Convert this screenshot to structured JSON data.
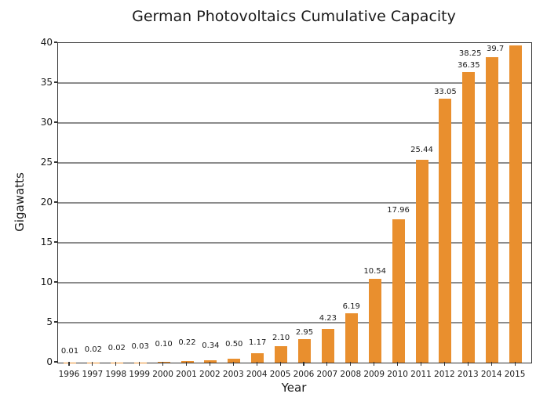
{
  "chart_data": {
    "type": "bar",
    "title": "German Photovoltaics Cumulative Capacity",
    "xlabel": "Year",
    "ylabel": "Gigawatts",
    "categories": [
      "1996",
      "1997",
      "1998",
      "1999",
      "2000",
      "2001",
      "2002",
      "2003",
      "2004",
      "2005",
      "2006",
      "2007",
      "2008",
      "2009",
      "2010",
      "2011",
      "2012",
      "2013",
      "2014",
      "2015"
    ],
    "values": [
      0.01,
      0.02,
      0.02,
      0.03,
      0.1,
      0.22,
      0.34,
      0.5,
      1.17,
      2.1,
      2.95,
      4.23,
      6.19,
      10.54,
      17.96,
      25.44,
      33.05,
      36.35,
      38.25,
      39.7
    ],
    "value_labels": [
      "0.01",
      "0.02",
      "0.02",
      "0.03",
      "0.10",
      "0.22",
      "0.34",
      "0.50",
      "1.17",
      "2.10",
      "2.95",
      "4.23",
      "6.19",
      "10.54",
      "17.96",
      "25.44",
      "33.05",
      "36.35",
      "38.25",
      "39.7"
    ],
    "ylim": [
      0,
      40
    ],
    "yticks": [
      0,
      5,
      10,
      15,
      20,
      25,
      30,
      35,
      40
    ],
    "grid": true,
    "legend": false,
    "bar_color": "#E98F2E",
    "grid_color": "#8C8C8C",
    "axis_color": "#333333",
    "text_color": "#1A1A1A"
  }
}
